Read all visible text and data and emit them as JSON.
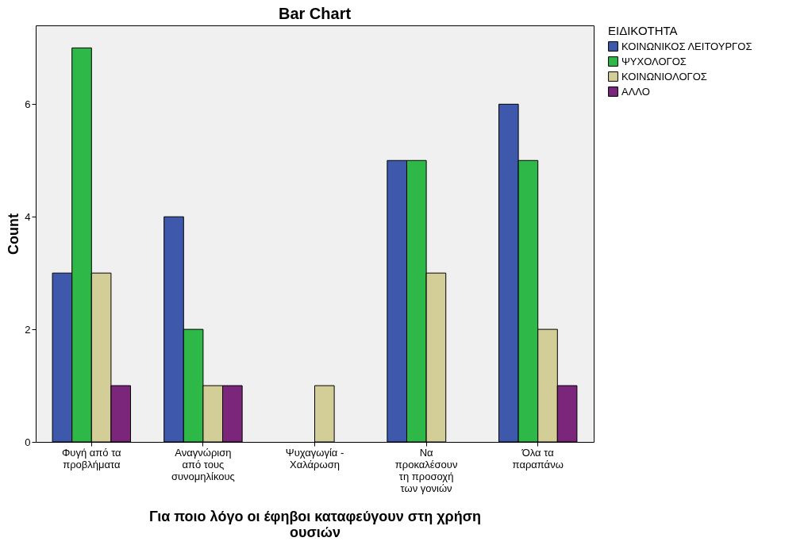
{
  "chart_data": {
    "type": "bar",
    "title": "Bar Chart",
    "xlabel": "Για ποιο λόγο οι έφηβοι καταφεύγουν στη χρήση ουσιών",
    "ylabel": "Count",
    "legend_title": "ΕΙΔΙΚΟΤΗΤΑ",
    "categories": [
      "Φυγή από τα προβλήματα",
      "Αναγνώριση από τους συνομηλίκους",
      "Ψυχαγωγία - Χαλάρωση",
      "Να προκαλέσουν τη προσοχή των γονιών",
      "Όλα τα παραπάνω"
    ],
    "series": [
      {
        "name": "ΚΟΙΝΩΝΙΚΟΣ ΛΕΙΤΟΥΡΓΟΣ",
        "color": "#3e58ac",
        "values": [
          3,
          4,
          null,
          5,
          6
        ]
      },
      {
        "name": "ΨΥΧΟΛΟΓΟΣ",
        "color": "#2eb848",
        "values": [
          7,
          2,
          null,
          5,
          5
        ]
      },
      {
        "name": "ΚΟΙΝΩΝΙΟΛΟΓΟΣ",
        "color": "#d3ce97",
        "values": [
          3,
          1,
          1,
          3,
          2
        ]
      },
      {
        "name": "ΑΛΛΟ",
        "color": "#7b267b",
        "values": [
          1,
          1,
          null,
          null,
          1
        ]
      }
    ],
    "ylim": [
      0,
      7.4
    ],
    "yticks": [
      0,
      2,
      4,
      6
    ],
    "grid": false,
    "legend": "top right"
  }
}
